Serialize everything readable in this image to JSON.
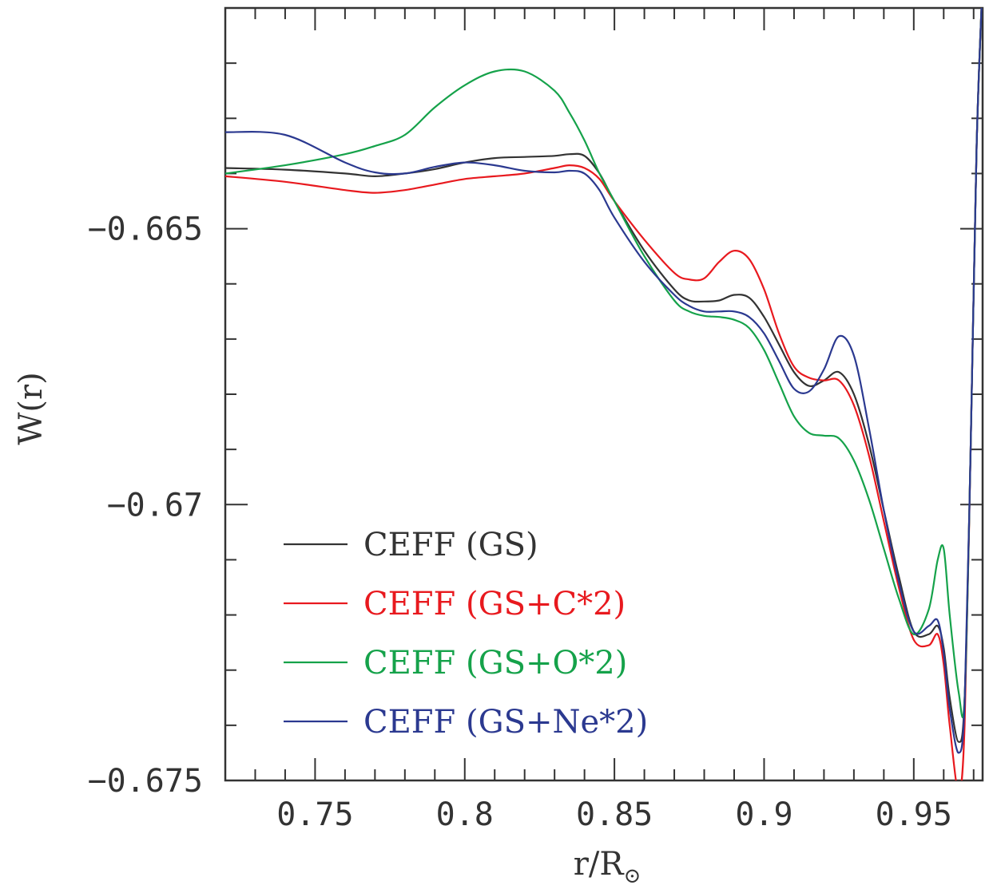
{
  "chart_data": {
    "type": "line",
    "xlabel": "r/R",
    "xlabel_subscript": "⊙",
    "ylabel": "W(r)",
    "xlim": [
      0.72,
      0.973
    ],
    "ylim": [
      -0.675,
      -0.661
    ],
    "x_ticks": [
      0.75,
      0.8,
      0.85,
      0.9,
      0.95
    ],
    "x_tick_labels": [
      "0.75",
      "0.8",
      "0.85",
      "0.9",
      "0.95"
    ],
    "y_ticks": [
      -0.665,
      -0.67,
      -0.675
    ],
    "y_tick_labels": [
      "−0.665",
      "−0.67",
      "−0.675"
    ],
    "grid": false,
    "legend_position": "lower-left",
    "series": [
      {
        "name": "CEFF (GS)",
        "color": "#333333",
        "x": [
          0.72,
          0.74,
          0.76,
          0.77,
          0.78,
          0.79,
          0.8,
          0.81,
          0.82,
          0.83,
          0.835,
          0.84,
          0.845,
          0.85,
          0.86,
          0.87,
          0.875,
          0.88,
          0.885,
          0.89,
          0.895,
          0.9,
          0.905,
          0.91,
          0.915,
          0.92,
          0.925,
          0.93,
          0.935,
          0.94,
          0.945,
          0.95,
          0.955,
          0.958,
          0.96,
          0.962,
          0.965,
          0.967,
          0.969,
          0.971,
          0.973
        ],
        "y": [
          -0.6639,
          -0.66393,
          -0.664,
          -0.66405,
          -0.664,
          -0.66392,
          -0.6638,
          -0.66372,
          -0.6637,
          -0.66368,
          -0.66365,
          -0.66368,
          -0.664,
          -0.6645,
          -0.6654,
          -0.6661,
          -0.6663,
          -0.66632,
          -0.6663,
          -0.6662,
          -0.66625,
          -0.6666,
          -0.6671,
          -0.6676,
          -0.66785,
          -0.66775,
          -0.6676,
          -0.668,
          -0.6689,
          -0.6701,
          -0.6713,
          -0.6723,
          -0.67235,
          -0.6722,
          -0.6726,
          -0.6735,
          -0.6743,
          -0.6735,
          -0.669,
          -0.6635,
          -0.6605
        ]
      },
      {
        "name": "CEFF (GS+C*2)",
        "color": "#e8191e",
        "x": [
          0.72,
          0.74,
          0.76,
          0.77,
          0.78,
          0.79,
          0.8,
          0.81,
          0.82,
          0.83,
          0.835,
          0.84,
          0.845,
          0.85,
          0.86,
          0.87,
          0.875,
          0.88,
          0.885,
          0.89,
          0.895,
          0.9,
          0.905,
          0.91,
          0.915,
          0.92,
          0.925,
          0.93,
          0.935,
          0.94,
          0.945,
          0.95,
          0.955,
          0.958,
          0.96,
          0.962,
          0.965,
          0.967,
          0.969,
          0.971,
          0.973
        ],
        "y": [
          -0.66405,
          -0.66415,
          -0.6643,
          -0.66435,
          -0.6643,
          -0.6642,
          -0.6641,
          -0.66405,
          -0.664,
          -0.6639,
          -0.66385,
          -0.6639,
          -0.6641,
          -0.6645,
          -0.6652,
          -0.6658,
          -0.66592,
          -0.6659,
          -0.6656,
          -0.6654,
          -0.66555,
          -0.6661,
          -0.6669,
          -0.6675,
          -0.6677,
          -0.66775,
          -0.66775,
          -0.6682,
          -0.6691,
          -0.6703,
          -0.6715,
          -0.67245,
          -0.67255,
          -0.67235,
          -0.6729,
          -0.674,
          -0.6752,
          -0.674,
          -0.669,
          -0.6635,
          -0.6605
        ]
      },
      {
        "name": "CEFF (GS+O*2)",
        "color": "#15a24a",
        "x": [
          0.72,
          0.74,
          0.76,
          0.77,
          0.78,
          0.79,
          0.8,
          0.81,
          0.82,
          0.83,
          0.835,
          0.84,
          0.845,
          0.85,
          0.86,
          0.87,
          0.875,
          0.88,
          0.885,
          0.89,
          0.895,
          0.9,
          0.905,
          0.91,
          0.915,
          0.92,
          0.925,
          0.93,
          0.935,
          0.94,
          0.945,
          0.95,
          0.955,
          0.958,
          0.96,
          0.962,
          0.965,
          0.967,
          0.969,
          0.971,
          0.973
        ],
        "y": [
          -0.664,
          -0.66385,
          -0.66365,
          -0.6635,
          -0.6633,
          -0.6628,
          -0.6624,
          -0.66215,
          -0.66215,
          -0.6625,
          -0.6629,
          -0.6634,
          -0.664,
          -0.6645,
          -0.6655,
          -0.6663,
          -0.6665,
          -0.66658,
          -0.6666,
          -0.66665,
          -0.6668,
          -0.6672,
          -0.6678,
          -0.6684,
          -0.6687,
          -0.66875,
          -0.6688,
          -0.6692,
          -0.6699,
          -0.6708,
          -0.6717,
          -0.67235,
          -0.6719,
          -0.671,
          -0.6708,
          -0.672,
          -0.6734,
          -0.6735,
          -0.669,
          -0.6635,
          -0.6605
        ]
      },
      {
        "name": "CEFF (GS+Ne*2)",
        "color": "#2b3990",
        "x": [
          0.72,
          0.74,
          0.76,
          0.77,
          0.78,
          0.79,
          0.8,
          0.81,
          0.82,
          0.83,
          0.835,
          0.84,
          0.845,
          0.85,
          0.86,
          0.87,
          0.875,
          0.88,
          0.885,
          0.89,
          0.895,
          0.9,
          0.905,
          0.91,
          0.915,
          0.92,
          0.925,
          0.93,
          0.935,
          0.94,
          0.945,
          0.95,
          0.955,
          0.958,
          0.96,
          0.962,
          0.965,
          0.967,
          0.969,
          0.971,
          0.973
        ],
        "y": [
          -0.66325,
          -0.6633,
          -0.6638,
          -0.66398,
          -0.664,
          -0.66388,
          -0.6638,
          -0.66385,
          -0.66395,
          -0.66398,
          -0.66395,
          -0.664,
          -0.6643,
          -0.6648,
          -0.6656,
          -0.6662,
          -0.6664,
          -0.6665,
          -0.6665,
          -0.6665,
          -0.6666,
          -0.6669,
          -0.6674,
          -0.6679,
          -0.66795,
          -0.66755,
          -0.66695,
          -0.6673,
          -0.6686,
          -0.6701,
          -0.6714,
          -0.6723,
          -0.6722,
          -0.6721,
          -0.6727,
          -0.6737,
          -0.6745,
          -0.6736,
          -0.669,
          -0.6635,
          -0.6605
        ]
      }
    ]
  }
}
